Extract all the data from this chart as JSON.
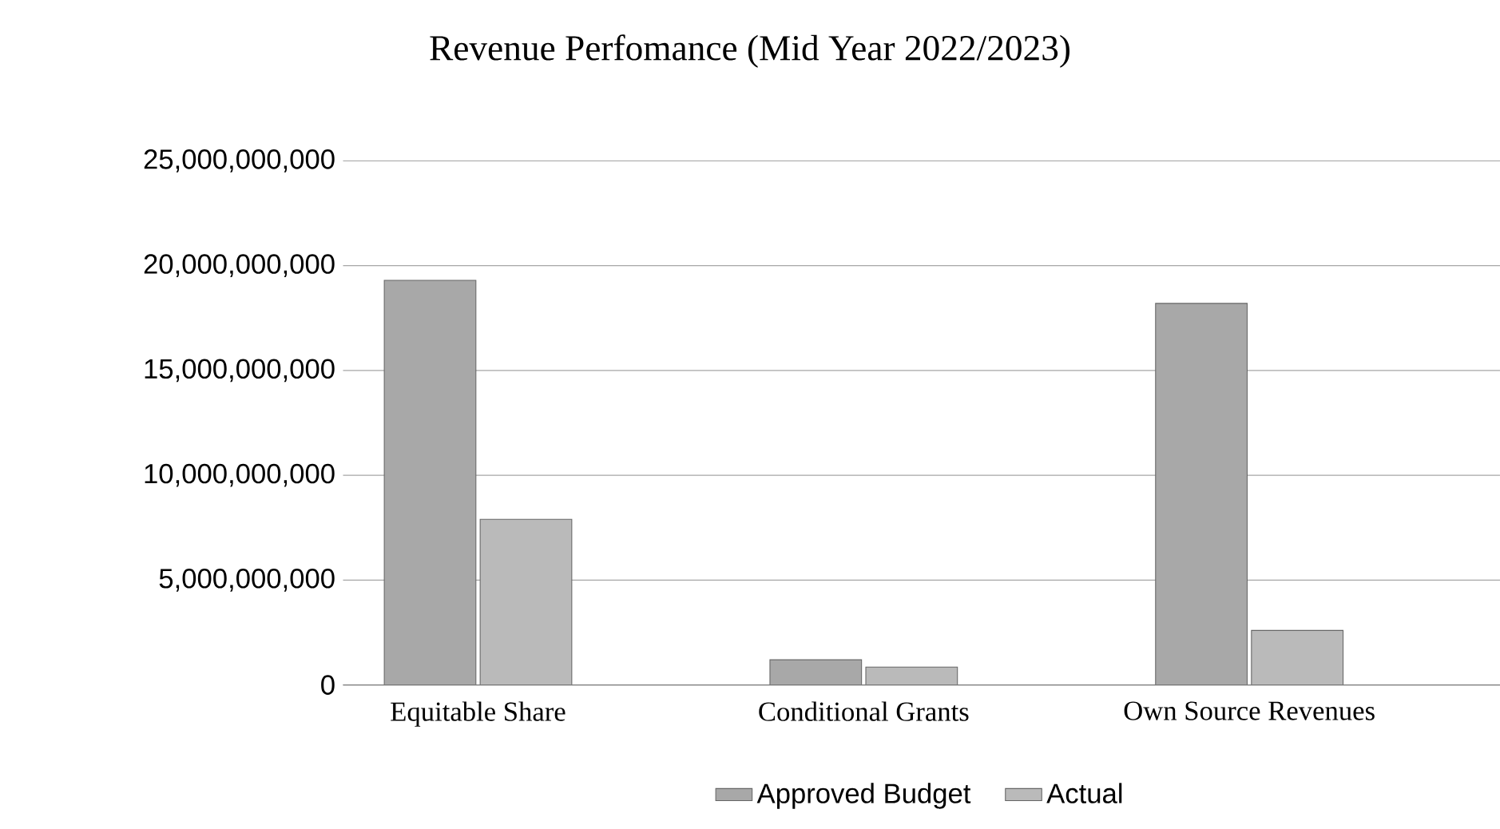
{
  "chart_data": {
    "type": "bar",
    "title": "Revenue Perfomance (Mid Year 2022/2023)",
    "categories": [
      "Equitable  Share",
      "Conditional  Grants",
      "Own Source  Revenues"
    ],
    "series": [
      {
        "name": "Approved Budget",
        "color": "#a8a8a8",
        "values": [
          19300000000,
          1200000000,
          18200000000
        ]
      },
      {
        "name": "Actual",
        "color": "#bababa",
        "values": [
          7900000000,
          850000000,
          2600000000
        ]
      }
    ],
    "ylim": [
      0,
      25000000000
    ],
    "yticks": [
      {
        "value": 0,
        "label": "0"
      },
      {
        "value": 5000000000,
        "label": "5,000,000,000"
      },
      {
        "value": 10000000000,
        "label": "10,000,000,000"
      },
      {
        "value": 15000000000,
        "label": "15,000,000,000"
      },
      {
        "value": 20000000000,
        "label": "20,000,000,000"
      },
      {
        "value": 25000000000,
        "label": "25,000,000,000"
      }
    ],
    "grid": "y",
    "legend": "bottom"
  }
}
